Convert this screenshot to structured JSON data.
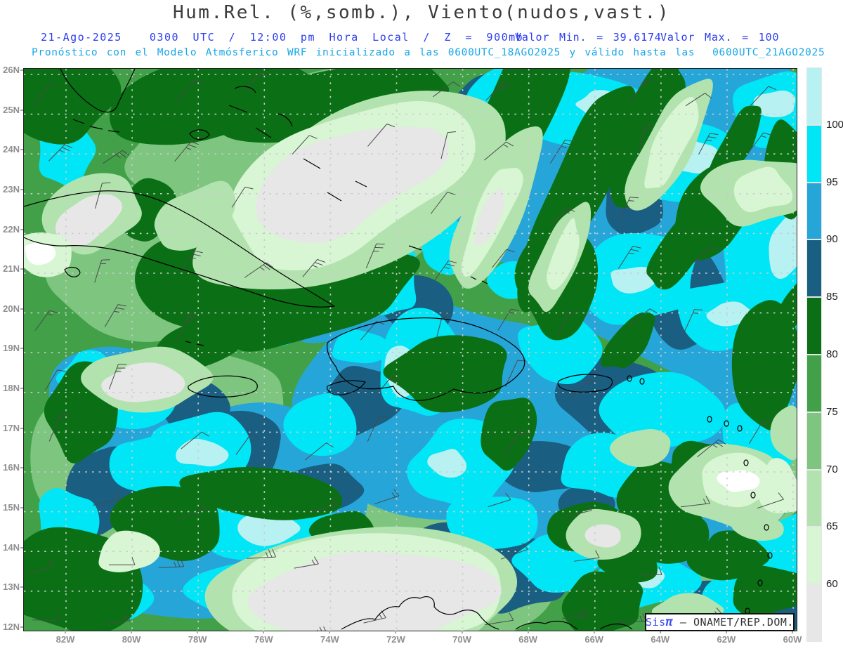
{
  "header": {
    "title": "Hum.Rel. (%,somb.), Viento(nudos,vast.)",
    "line2_left": "21-Ago-2025  0300 UTC / 12:00 pm Hora Local / Z = 900mb",
    "line2_min": "Valor Min. = 39.6174",
    "line2_max": "Valor Max. = 100",
    "line3": "Pronóstico con el Modelo Atmósferico WRF inicializado a las 0600UTC_18AGO2025 y válido hasta las  0600UTC_21AGO2025"
  },
  "axes": {
    "lat": [
      "26N",
      "25N",
      "24N",
      "23N",
      "22N",
      "21N",
      "20N",
      "19N",
      "18N",
      "17N",
      "16N",
      "15N",
      "14N",
      "13N",
      "12N"
    ],
    "lon": [
      "82W",
      "80W",
      "78W",
      "76W",
      "74W",
      "72W",
      "70W",
      "68W",
      "66W",
      "64W",
      "62W",
      "60W"
    ]
  },
  "colorbar": {
    "labels": [
      "100",
      "95",
      "90",
      "85",
      "80",
      "75",
      "70",
      "65",
      "60"
    ],
    "segments": [
      "c100",
      "c95",
      "c90",
      "c85",
      "c80",
      "c75",
      "c70",
      "c65",
      "c60",
      "cgray"
    ]
  },
  "watermark": {
    "sis": "Sis",
    "pi": "π",
    "rest": " – ONAMET/REP.DOM."
  },
  "colors": {
    "palette": {
      "cgray": "#e7e7e7",
      "c60": "#d8f5d4",
      "c65": "#b2e3ae",
      "c70": "#7ec57f",
      "c75": "#42a148",
      "c80": "#0b7015",
      "c85": "#1a5f82",
      "c90": "#26a6d8",
      "c95": "#00e6f6",
      "c100": "#b8f1f1",
      "cwhite": "#ffffff"
    },
    "title_text": "#3c3c3c",
    "line2_text": "#2b3cf0",
    "line3_text": "#18a7ea",
    "axis_text": "#8f8f8f",
    "colorbar_text": "#1e1e1e",
    "coastline": "#000000",
    "barb": "#4a4a4a",
    "grid_dots": "#cccccc",
    "watermark_sis": "#3f51f0",
    "watermark_rest": "#333333"
  },
  "chart_data": {
    "type": "filled_contour_map",
    "title": "Hum.Rel. (%,somb.), Viento(nudos,vast.)",
    "variable": "Relative humidity (%, shaded) and wind (knots, barbs)",
    "level": "900mb",
    "valid_time": "21-Ago-2025 0300 UTC / 12:00 pm Hora Local",
    "model": "WRF",
    "model_initialized": "0600UTC_18AGO2025",
    "model_valid_until": "0600UTC_21AGO2025",
    "value_min": 39.6174,
    "value_max": 100,
    "contour_levels": [
      60,
      65,
      70,
      75,
      80,
      85,
      90,
      95,
      100
    ],
    "palette_order_low_to_high": [
      "cgray",
      "c60",
      "c65",
      "c70",
      "c75",
      "c80",
      "c85",
      "c90",
      "c95",
      "c100"
    ],
    "lat_ticks": [
      "26N",
      "25N",
      "24N",
      "23N",
      "22N",
      "21N",
      "20N",
      "19N",
      "18N",
      "17N",
      "16N",
      "15N",
      "14N",
      "13N",
      "12N"
    ],
    "lon_ticks": [
      "82W",
      "80W",
      "78W",
      "76W",
      "74W",
      "72W",
      "70W",
      "68W",
      "66W",
      "64W",
      "62W",
      "60W"
    ],
    "graticule": "dotted, 2 deg lon x 1 deg lat",
    "legend_position": "right colorbar",
    "source_label": "Sisπ – ONAMET/REP.DOM."
  }
}
